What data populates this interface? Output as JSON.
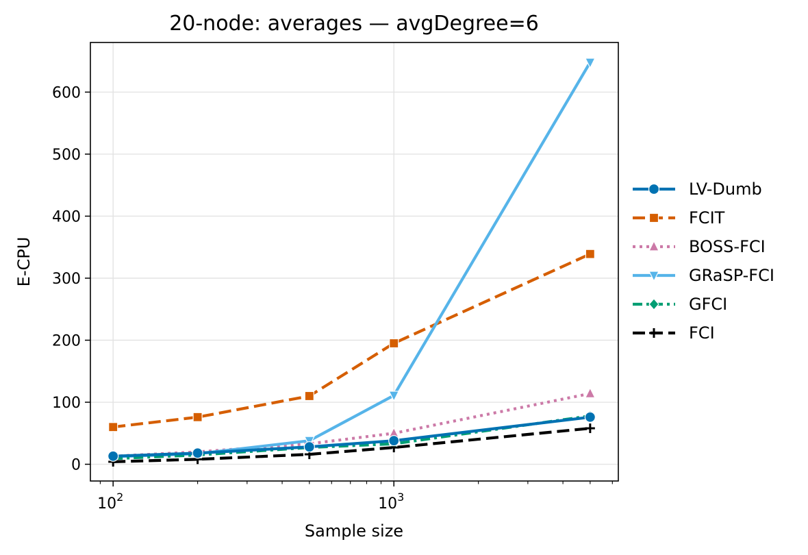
{
  "chart_data": {
    "type": "line",
    "title": "20-node: averages — avgDegree=6",
    "xlabel": "Sample size",
    "ylabel": "E-CPU",
    "xscale": "log",
    "xlim": [
      83,
      6300
    ],
    "ylim": [
      -27,
      680
    ],
    "x": [
      100,
      200,
      500,
      1000,
      5000
    ],
    "xticks": [
      {
        "value": 100,
        "base": "10",
        "exp": "2"
      },
      {
        "value": 1000,
        "base": "10",
        "exp": "3"
      }
    ],
    "yticks": [
      0,
      100,
      200,
      300,
      400,
      500,
      600
    ],
    "grid": true,
    "legend_position": "right, outside plot",
    "series": [
      {
        "name": "FCIT",
        "color": "#d55e00",
        "dash": "dashed",
        "marker": "square",
        "values": [
          60,
          76,
          110,
          195,
          339
        ]
      },
      {
        "name": "BOSS-FCI",
        "color": "#cc79a7",
        "dash": "dotted",
        "marker": "triangle-up",
        "values": [
          13,
          20,
          33,
          50,
          114
        ]
      },
      {
        "name": "GRaSP-FCI",
        "color": "#56b4e9",
        "dash": "solid",
        "marker": "triangle-down",
        "values": [
          12,
          17,
          38,
          111,
          648
        ]
      },
      {
        "name": "GFCI",
        "color": "#009e73",
        "dash": "dashdot",
        "marker": "diamond",
        "values": [
          9,
          15,
          27,
          33,
          78
        ]
      },
      {
        "name": "FCI",
        "color": "#000000",
        "dash": "dashed",
        "marker": "plus",
        "values": [
          4,
          8,
          16,
          27,
          58
        ]
      },
      {
        "name": "LV-Dumb",
        "color": "#0072b2",
        "dash": "solid",
        "marker": "circle",
        "values": [
          13,
          18,
          28,
          38,
          76
        ]
      }
    ],
    "legend_order": [
      "LV-Dumb",
      "FCIT",
      "BOSS-FCI",
      "GRaSP-FCI",
      "GFCI",
      "FCI"
    ]
  }
}
